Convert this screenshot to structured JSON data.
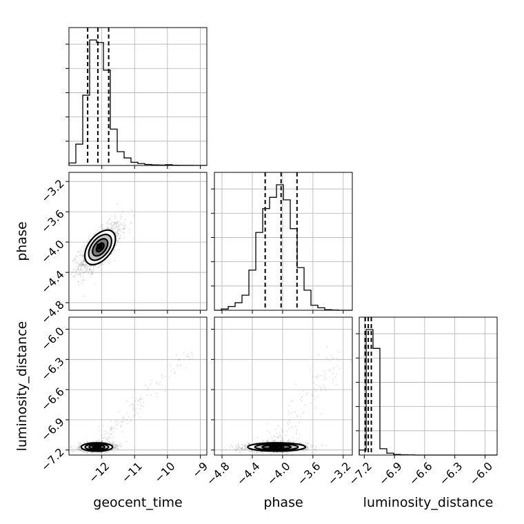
{
  "chart_data": {
    "type": "corner",
    "parameters": [
      "geocent_time",
      "phase",
      "luminosity_distance"
    ],
    "axis_labels": {
      "x": [
        "geocent_time",
        "phase",
        "luminosity_distance"
      ],
      "y": [
        "phase",
        "luminosity_distance"
      ]
    },
    "ranges": {
      "geocent_time": [
        -13.0,
        -8.8
      ],
      "phase": [
        -4.9,
        -3.08
      ],
      "luminosity_distance": [
        -7.25,
        -5.88
      ]
    },
    "ticks": {
      "geocent_time": [
        -12,
        -11,
        -10,
        -9
      ],
      "phase": [
        -4.8,
        -4.4,
        -4.0,
        -3.6,
        -3.2
      ],
      "luminosity_distance": [
        -7.2,
        -6.9,
        -6.6,
        -6.3,
        -6.0
      ]
    },
    "tick_labels": {
      "geocent_time": [
        "−12",
        "−11",
        "−10",
        "−9"
      ],
      "phase": [
        "−4.8",
        "−4.4",
        "−4.0",
        "−3.6",
        "−3.2"
      ],
      "luminosity_distance": [
        "−7.2",
        "−6.9",
        "−6.6",
        "−6.3",
        "−6.0"
      ]
    },
    "histograms": {
      "geocent_time": {
        "bin_edges": [
          -13.0,
          -12.79,
          -12.58,
          -12.37,
          -12.16,
          -11.95,
          -11.74,
          -11.53,
          -11.32,
          -11.11,
          -10.9,
          -10.69,
          -10.48,
          -10.27,
          -10.06,
          -9.85,
          -9.64,
          -9.43,
          -9.22,
          -9.01,
          -8.8
        ],
        "counts": [
          0.02,
          0.17,
          0.56,
          1.0,
          0.98,
          0.76,
          0.29,
          0.11,
          0.06,
          0.025,
          0.015,
          0.008,
          0.005,
          0.003,
          0.006,
          0.002,
          0.001,
          0.001,
          0.0005,
          0.0005
        ],
        "quantiles": [
          -12.43,
          -12.12,
          -11.79
        ]
      },
      "phase": {
        "bin_edges": [
          -4.9,
          -4.809,
          -4.718,
          -4.627,
          -4.536,
          -4.445,
          -4.354,
          -4.263,
          -4.172,
          -4.081,
          -3.99,
          -3.899,
          -3.808,
          -3.717,
          -3.626,
          -3.535,
          -3.444,
          -3.353,
          -3.262,
          -3.171,
          -3.08
        ],
        "counts": [
          0.0,
          0.01,
          0.03,
          0.06,
          0.12,
          0.32,
          0.62,
          0.81,
          0.9,
          1.0,
          0.88,
          0.65,
          0.34,
          0.16,
          0.04,
          0.02,
          0.005,
          0.002,
          0.0,
          0.0
        ],
        "quantiles": [
          -4.23,
          -4.02,
          -3.81
        ]
      },
      "luminosity_distance": {
        "bin_edges": [
          -7.25,
          -7.1815,
          -7.113,
          -7.0445,
          -6.976,
          -6.9075,
          -6.839,
          -6.7705,
          -6.702,
          -6.6335,
          -6.565,
          -6.4965,
          -6.428,
          -6.3595,
          -6.291,
          -6.2225,
          -6.154,
          -6.0855,
          -6.017,
          -5.9485,
          -5.88
        ],
        "counts": [
          0.04,
          1.0,
          0.85,
          0.05,
          0.015,
          0.005,
          0.002,
          0.001,
          0.0,
          0.0,
          0.0,
          0.0,
          0.0,
          0.0,
          0.0,
          0.0,
          0.0,
          0.0,
          0.0,
          0.0
        ],
        "quantiles": [
          -7.19,
          -7.16,
          -7.13
        ]
      }
    },
    "pairs": [
      {
        "x_param": "geocent_time",
        "y_param": "phase",
        "center": [
          -12.05,
          -4.07
        ],
        "spread": [
          0.32,
          0.16
        ],
        "correlation": 0.72,
        "contour_levels": [
          "0.5σ",
          "1σ",
          "1.5σ",
          "2σ"
        ]
      },
      {
        "x_param": "geocent_time",
        "y_param": "luminosity_distance",
        "center": [
          -12.15,
          -7.17
        ],
        "spread": [
          0.25,
          0.022
        ],
        "correlation": 0.1,
        "tail": "correlated tail toward (-9, -6)",
        "contour_levels": [
          "0.5σ",
          "1σ",
          "1.5σ",
          "2σ"
        ]
      },
      {
        "x_param": "phase",
        "y_param": "luminosity_distance",
        "center": [
          -4.08,
          -7.17
        ],
        "spread": [
          0.2,
          0.022
        ],
        "correlation": 0.08,
        "tail": "correlated tail toward (-3.4, -6.3)",
        "contour_levels": [
          "0.5σ",
          "1σ",
          "1.5σ",
          "2σ"
        ]
      }
    ],
    "grid": true
  }
}
